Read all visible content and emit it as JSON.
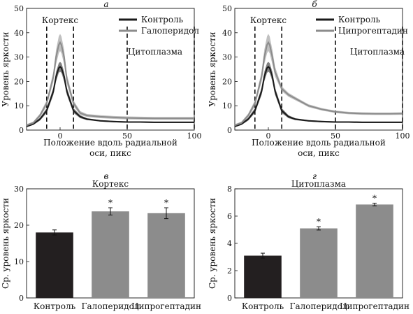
{
  "chart_data": [
    {
      "panel": "а",
      "type": "line",
      "title": "",
      "xlabel": "Положение вдоль радиальной оси, пикс",
      "ylabel": "Уровень яркости",
      "xlim": [
        -25,
        100
      ],
      "ylim": [
        0,
        50
      ],
      "xticks": [
        "0",
        "50",
        "100"
      ],
      "yticks": [
        "0",
        "10",
        "20",
        "30",
        "40",
        "50"
      ],
      "legend_position": "top-right",
      "dashed_lines_x": [
        -10,
        10,
        50,
        100
      ],
      "annotations": [
        {
          "text": "Кортекс",
          "x": 0,
          "y": 44
        },
        {
          "text": "Цитоплазма",
          "x": 75,
          "y": 31
        }
      ],
      "series": [
        {
          "name": "Контроль",
          "color": "#1a1a1a",
          "x": [
            -25,
            -20,
            -15,
            -10,
            -5,
            -3,
            -1,
            0,
            1,
            3,
            5,
            10,
            15,
            20,
            30,
            40,
            50,
            60,
            70,
            80,
            90,
            100
          ],
          "y": [
            1.5,
            2.5,
            4.5,
            8,
            16,
            22,
            25.5,
            26,
            25.5,
            22,
            16,
            8,
            5.5,
            4.5,
            3.8,
            3.5,
            3.3,
            3.3,
            3.2,
            3.2,
            3.2,
            3.2
          ],
          "err": [
            0.3,
            0.4,
            0.6,
            1,
            1.5,
            2,
            2,
            2,
            2,
            2,
            1.5,
            1,
            0.6,
            0.4,
            0.3,
            0.3,
            0.3,
            0.3,
            0.3,
            0.3,
            0.3,
            0.3
          ]
        },
        {
          "name": "Галоперидол",
          "color": "#8c8c8c",
          "x": [
            -25,
            -20,
            -15,
            -10,
            -5,
            -3,
            -1,
            0,
            1,
            3,
            5,
            10,
            15,
            20,
            30,
            40,
            50,
            60,
            70,
            80,
            90,
            100
          ],
          "y": [
            2,
            3,
            6,
            11,
            22,
            30,
            35,
            36,
            35,
            30,
            21,
            11,
            7,
            6,
            5.5,
            5.2,
            5,
            4.9,
            4.8,
            4.8,
            4.8,
            4.8
          ],
          "err": [
            0.4,
            0.5,
            0.8,
            1.2,
            2,
            3,
            3.5,
            3.5,
            3.5,
            3,
            2,
            1.2,
            0.8,
            0.6,
            0.6,
            0.6,
            0.6,
            0.6,
            0.6,
            0.6,
            0.6,
            0.6
          ]
        }
      ]
    },
    {
      "panel": "б",
      "type": "line",
      "title": "",
      "xlabel": "Положение вдоль радиальной оси, пикс",
      "ylabel": "Уровень яркости",
      "xlim": [
        -25,
        100
      ],
      "ylim": [
        0,
        50
      ],
      "xticks": [
        "0",
        "50",
        "100"
      ],
      "yticks": [
        "0",
        "10",
        "20",
        "30",
        "40",
        "50"
      ],
      "legend_position": "top-right",
      "dashed_lines_x": [
        -10,
        10,
        50,
        100
      ],
      "annotations": [
        {
          "text": "Кортекс",
          "x": 0,
          "y": 44
        },
        {
          "text": "Цитоплазма",
          "x": 75,
          "y": 31
        }
      ],
      "series": [
        {
          "name": "Контроль",
          "color": "#1a1a1a",
          "x": [
            -25,
            -20,
            -15,
            -10,
            -5,
            -3,
            -1,
            0,
            1,
            3,
            5,
            10,
            15,
            20,
            30,
            40,
            50,
            60,
            70,
            80,
            90,
            100
          ],
          "y": [
            1.5,
            2.5,
            4.5,
            8,
            16,
            22,
            25.5,
            26,
            25.5,
            22,
            16,
            8,
            5.5,
            4.5,
            3.8,
            3.5,
            3.3,
            3.3,
            3.2,
            3.2,
            3.2,
            3.2
          ],
          "err": [
            0.3,
            0.4,
            0.6,
            1,
            1.5,
            2,
            2,
            2,
            2,
            2,
            1.5,
            1,
            0.6,
            0.4,
            0.3,
            0.3,
            0.3,
            0.3,
            0.3,
            0.3,
            0.3,
            0.3
          ]
        },
        {
          "name": "Ципрогептадин",
          "color": "#8c8c8c",
          "x": [
            -25,
            -20,
            -15,
            -10,
            -5,
            -3,
            -1,
            0,
            1,
            3,
            5,
            10,
            15,
            20,
            25,
            30,
            40,
            50,
            60,
            70,
            80,
            90,
            100
          ],
          "y": [
            2,
            3,
            6,
            11,
            22,
            30,
            35,
            36,
            35,
            30,
            24,
            17,
            14.5,
            13,
            11.5,
            10,
            8.5,
            7.5,
            7,
            6.8,
            6.7,
            6.7,
            6.8
          ],
          "err": [
            0.4,
            0.5,
            0.8,
            1.2,
            2,
            3,
            3.5,
            3.5,
            3.5,
            3,
            2,
            1,
            0.8,
            0.7,
            0.6,
            0.6,
            0.5,
            0.5,
            0.5,
            0.5,
            0.5,
            0.5,
            0.5
          ]
        }
      ]
    },
    {
      "panel": "в",
      "type": "bar",
      "title": "Кортекс",
      "xlabel": "",
      "ylabel": "Ср. уровень яркости",
      "ylim": [
        0,
        30
      ],
      "yticks": [
        "0",
        "10",
        "20",
        "30"
      ],
      "categories": [
        "Контроль",
        "Галоперидол",
        "Ципрогептадин"
      ],
      "values": [
        18,
        23.8,
        23.3
      ],
      "errors": [
        0.7,
        1.0,
        1.5
      ],
      "significance": [
        "",
        "*",
        "*"
      ],
      "colors": [
        "#231f20",
        "#8c8c8c",
        "#8c8c8c"
      ]
    },
    {
      "panel": "г",
      "type": "bar",
      "title": "Цитоплазма",
      "xlabel": "",
      "ylabel": "Ср. уровень яркости",
      "ylim": [
        0,
        8
      ],
      "yticks": [
        "0",
        "2",
        "4",
        "6",
        "8"
      ],
      "categories": [
        "Контроль",
        "Галоперидол",
        "Ципрогептадин"
      ],
      "values": [
        3.1,
        5.1,
        6.85
      ],
      "errors": [
        0.18,
        0.12,
        0.1
      ],
      "significance": [
        "",
        "*",
        "*"
      ],
      "colors": [
        "#231f20",
        "#8c8c8c",
        "#8c8c8c"
      ]
    }
  ]
}
